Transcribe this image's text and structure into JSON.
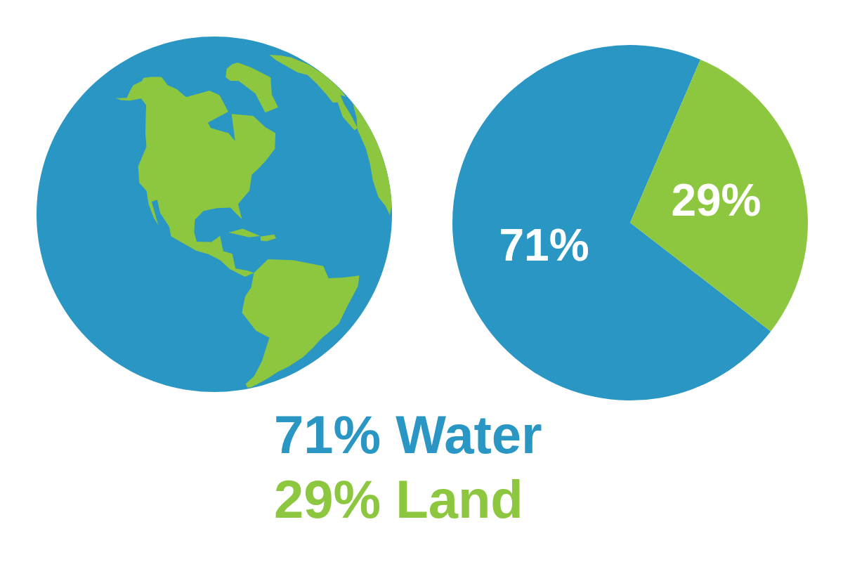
{
  "chart_data": {
    "type": "pie",
    "values": [
      71,
      29
    ],
    "value_labels": [
      "71%",
      "29%"
    ],
    "colors": [
      "#2996c3",
      "#8dc63f"
    ],
    "data_labels": true,
    "annotations": [
      "71% Water",
      "29% Land"
    ]
  }
}
